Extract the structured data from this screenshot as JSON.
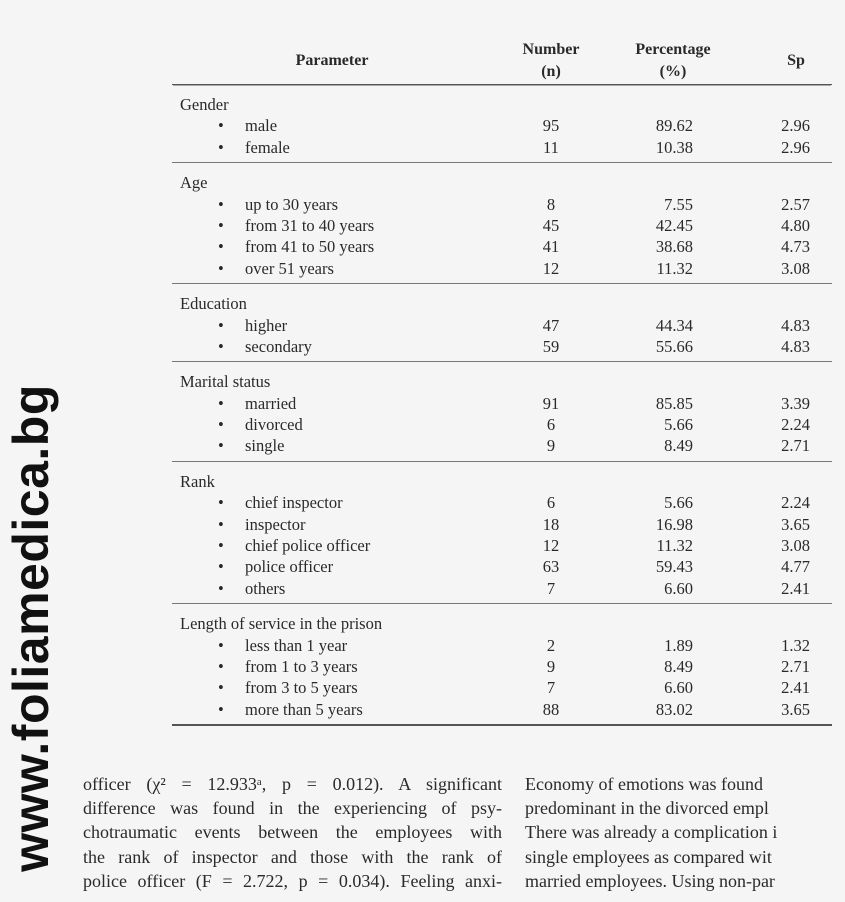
{
  "watermark": "www.foliamedica.bg",
  "table": {
    "headers": {
      "parameter": "Parameter",
      "number_1": "Number",
      "number_2": "(n)",
      "percentage_1": "Percentage",
      "percentage_2": "(%)",
      "sp": "Sp"
    },
    "groups": [
      {
        "label": "Gender",
        "rows": [
          {
            "item": "male",
            "n": "95",
            "pct": "89.62",
            "sp": "2.96"
          },
          {
            "item": "female",
            "n": "11",
            "pct": "10.38",
            "sp": "2.96"
          }
        ]
      },
      {
        "label": "Age",
        "rows": [
          {
            "item": "up to 30 years",
            "n": "8",
            "pct": "7.55",
            "sp": "2.57"
          },
          {
            "item": "from 31 to 40 years",
            "n": "45",
            "pct": "42.45",
            "sp": "4.80"
          },
          {
            "item": "from 41 to 50 years",
            "n": "41",
            "pct": "38.68",
            "sp": "4.73"
          },
          {
            "item": "over 51 years",
            "n": "12",
            "pct": "11.32",
            "sp": "3.08"
          }
        ]
      },
      {
        "label": "Education",
        "rows": [
          {
            "item": "higher",
            "n": "47",
            "pct": "44.34",
            "sp": "4.83"
          },
          {
            "item": "secondary",
            "n": "59",
            "pct": "55.66",
            "sp": "4.83"
          }
        ]
      },
      {
        "label": "Marital status",
        "rows": [
          {
            "item": "married",
            "n": "91",
            "pct": "85.85",
            "sp": "3.39"
          },
          {
            "item": "divorced",
            "n": "6",
            "pct": "5.66",
            "sp": "2.24"
          },
          {
            "item": "single",
            "n": "9",
            "pct": "8.49",
            "sp": "2.71"
          }
        ]
      },
      {
        "label": "Rank",
        "rows": [
          {
            "item": "chief inspector",
            "n": "6",
            "pct": "5.66",
            "sp": "2.24"
          },
          {
            "item": "inspector",
            "n": "18",
            "pct": "16.98",
            "sp": "3.65"
          },
          {
            "item": "chief police officer",
            "n": "12",
            "pct": "11.32",
            "sp": "3.08"
          },
          {
            "item": "police officer",
            "n": "63",
            "pct": "59.43",
            "sp": "4.77"
          },
          {
            "item": "others",
            "n": "7",
            "pct": "6.60",
            "sp": "2.41"
          }
        ]
      },
      {
        "label": "Length of service in the prison",
        "rows": [
          {
            "item": "less than 1 year",
            "n": "2",
            "pct": "1.89",
            "sp": "1.32"
          },
          {
            "item": "from 1 to 3 years",
            "n": "9",
            "pct": "8.49",
            "sp": "2.71"
          },
          {
            "item": "from 3 to 5 years",
            "n": "7",
            "pct": "6.60",
            "sp": "2.41"
          },
          {
            "item": "more than 5 years",
            "n": "88",
            "pct": "83.02",
            "sp": "3.65"
          }
        ]
      }
    ]
  },
  "body_text": {
    "left_lines": [
      "officer (χ² = 12.933ᵃ, p = 0.012). A significant",
      "difference was found in the experiencing of psy-",
      "chotraumatic events between the employees with",
      "the rank of inspector and those with the rank of",
      "police officer (F = 2.722, p = 0.034). Feeling anxi-"
    ],
    "right_lines": [
      "Economy of emotions was found",
      "predominant in the divorced empl",
      "There was already a complication i",
      "single employees as compared wit",
      "married employees. Using non-par"
    ]
  }
}
